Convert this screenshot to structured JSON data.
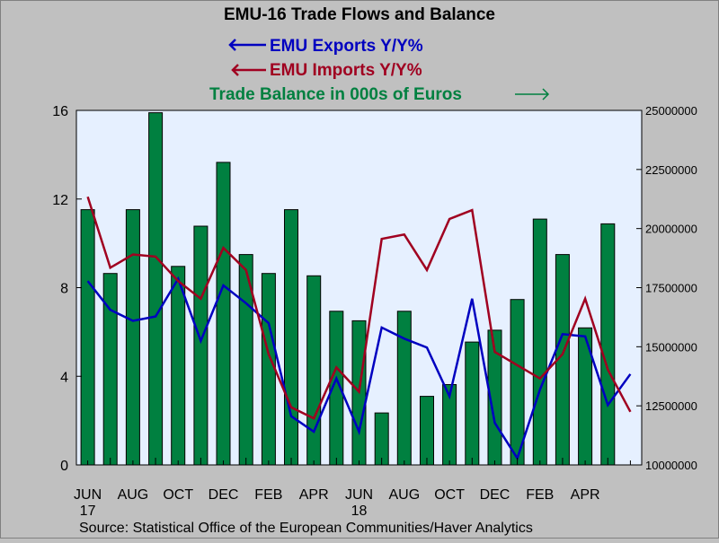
{
  "chart_data": {
    "type": "bar+line",
    "title": "EMU-16 Trade Flows and Balance",
    "legend": [
      {
        "label": "EMU Exports Y/Y%",
        "color": "#0000c0",
        "axis": "left",
        "arrow": "left"
      },
      {
        "label": "EMU Imports Y/Y%",
        "color": "#a00020",
        "axis": "left",
        "arrow": "left"
      },
      {
        "label": "Trade Balance in 000s of Euros",
        "color": "#008040",
        "axis": "right",
        "arrow": "right"
      }
    ],
    "source": "Source:  Statistical Office of the European Communities/Haver Analytics",
    "left_axis": {
      "min": 0,
      "max": 16,
      "ticks": [
        "0",
        "4",
        "8",
        "12",
        "16"
      ]
    },
    "right_axis": {
      "min": 10000000,
      "max": 25000000,
      "ticks": [
        "10000000",
        "12500000",
        "15000000",
        "17500000",
        "20000000",
        "22500000",
        "25000000"
      ]
    },
    "x_tick_labels": [
      {
        "label": "JUN",
        "index": 0,
        "sub": "17"
      },
      {
        "label": "AUG",
        "index": 2
      },
      {
        "label": "OCT",
        "index": 4
      },
      {
        "label": "DEC",
        "index": 6
      },
      {
        "label": "FEB",
        "index": 8
      },
      {
        "label": "APR",
        "index": 10
      },
      {
        "label": "JUN",
        "index": 12,
        "sub": "18"
      },
      {
        "label": "AUG",
        "index": 14
      },
      {
        "label": "OCT",
        "index": 16
      },
      {
        "label": "DEC",
        "index": 18
      },
      {
        "label": "FEB",
        "index": 20
      },
      {
        "label": "APR",
        "index": 22
      }
    ],
    "categories": [
      "2017-05",
      "2017-06",
      "2017-07",
      "2017-08",
      "2017-09",
      "2017-10",
      "2017-11",
      "2017-12",
      "2018-01",
      "2018-02",
      "2018-03",
      "2018-04",
      "2018-05",
      "2018-06",
      "2018-07",
      "2018-08",
      "2018-09",
      "2018-10",
      "2018-11",
      "2018-12",
      "2019-01",
      "2019-02",
      "2019-03",
      "2019-04",
      "2019-05"
    ],
    "series": [
      {
        "name": "Trade Balance in 000s of Euros",
        "type": "bar",
        "axis": "right",
        "color": "#008040",
        "values": [
          20800000,
          18100000,
          20800000,
          24900000,
          18400000,
          20100000,
          22800000,
          18900000,
          18100000,
          20800000,
          18000000,
          16500000,
          16100000,
          12200000,
          16500000,
          12900000,
          13400000,
          15200000,
          15700000,
          17000000,
          20400000,
          18900000,
          15800000,
          20200000,
          null
        ]
      },
      {
        "name": "EMU Exports Y/Y%",
        "type": "line",
        "axis": "left",
        "color": "#0000c0",
        "values": [
          8.3,
          7.0,
          6.5,
          6.7,
          8.4,
          5.6,
          8.1,
          7.3,
          6.4,
          2.2,
          1.5,
          3.9,
          1.5,
          6.2,
          5.7,
          5.3,
          3.1,
          7.5,
          1.9,
          0.3,
          3.4,
          5.9,
          5.8,
          2.7,
          4.1
        ]
      },
      {
        "name": "EMU Imports Y/Y%",
        "type": "line",
        "axis": "left",
        "color": "#a00020",
        "values": [
          12.1,
          8.9,
          9.5,
          9.4,
          8.3,
          7.5,
          9.8,
          8.8,
          5.0,
          2.6,
          2.1,
          4.4,
          3.3,
          10.2,
          10.4,
          8.8,
          11.1,
          11.5,
          5.1,
          4.5,
          3.9,
          5.0,
          7.5,
          4.3,
          2.4
        ]
      }
    ]
  }
}
